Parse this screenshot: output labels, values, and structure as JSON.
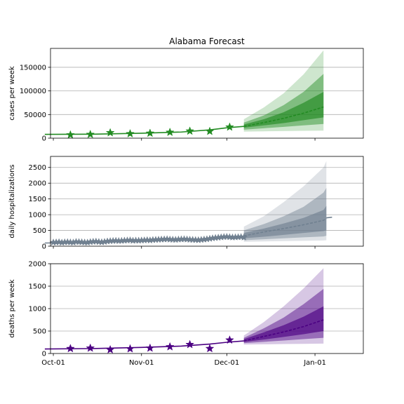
{
  "title": "Alabama Forecast",
  "chart_data": [
    {
      "type": "line",
      "name_key": "cases",
      "ylabel": "cases per week",
      "ylim": [
        0,
        190000
      ],
      "yticks": [
        0,
        50000,
        100000,
        150000
      ],
      "ytick_labels": [
        "0",
        "50000",
        "100000",
        "150000"
      ],
      "grid": true,
      "color": "#228B22",
      "observed_marker": "star",
      "observed": {
        "x": [
          "2020-10-07",
          "2020-10-14",
          "2020-10-21",
          "2020-10-28",
          "2020-11-04",
          "2020-11-11",
          "2020-11-18",
          "2020-11-25",
          "2020-12-02"
        ],
        "y": [
          7000,
          8000,
          11500,
          9500,
          10500,
          12500,
          15000,
          14500,
          23500
        ]
      },
      "fit": {
        "x": [
          "2020-09-28",
          "2020-10-15",
          "2020-11-01",
          "2020-11-15",
          "2020-11-25",
          "2020-12-01",
          "2020-12-07"
        ],
        "y": [
          8000,
          8500,
          10500,
          13000,
          17500,
          22000,
          25000
        ]
      },
      "forecast": {
        "x": [
          "2020-12-07",
          "2020-12-14",
          "2020-12-21",
          "2020-12-28",
          "2021-01-04"
        ],
        "median": [
          25000,
          33000,
          42000,
          53000,
          66000
        ],
        "bands": [
          {
            "level": "outer",
            "low": [
              14000,
              14500,
              15000,
              15500,
              16000
            ],
            "high": [
              40000,
              65000,
              95000,
              135000,
              186000
            ]
          },
          {
            "level": "middle",
            "low": [
              18000,
              21000,
              24000,
              27000,
              30000
            ],
            "high": [
              33000,
              48000,
              70000,
              98000,
              136000
            ]
          },
          {
            "level": "inner",
            "low": [
              22000,
              27000,
              32000,
              38000,
              44000
            ],
            "high": [
              29000,
              40000,
              55000,
              75000,
              98000
            ]
          }
        ]
      }
    },
    {
      "type": "line",
      "name_key": "hospitalizations",
      "ylabel": "daily hospitalizations",
      "ylim": [
        0,
        2850
      ],
      "yticks": [
        0,
        500,
        1000,
        1500,
        2000,
        2500
      ],
      "ytick_labels": [
        "0",
        "500",
        "1000",
        "1500",
        "2000",
        "2500"
      ],
      "grid": true,
      "color": "#708090",
      "observed_marker": "star",
      "observed": {
        "x_start": "2020-10-01",
        "x_end": "2020-12-07",
        "y": [
          120,
          125,
          130,
          115,
          128,
          132,
          125,
          118,
          140,
          135,
          128,
          122,
          118,
          135,
          145,
          150,
          138,
          128,
          140,
          155,
          165,
          170,
          175,
          168,
          172,
          180,
          185,
          190,
          175,
          182,
          180,
          185,
          190,
          195,
          188,
          200,
          205,
          210,
          215,
          220,
          225,
          215,
          210,
          205,
          215,
          220,
          225,
          218,
          210,
          205,
          200,
          195,
          205,
          215,
          225,
          240,
          255,
          265,
          275,
          285,
          295,
          300,
          290,
          280,
          285,
          290,
          295,
          280
        ]
      },
      "fit": {
        "x": [
          "2020-09-28",
          "2020-10-15",
          "2020-11-01",
          "2020-11-15",
          "2020-12-01",
          "2020-12-07"
        ],
        "y": [
          100,
          130,
          170,
          200,
          270,
          310
        ]
      },
      "forecast": {
        "x": [
          "2020-12-07",
          "2020-12-14",
          "2020-12-21",
          "2020-12-28",
          "2021-01-04",
          "2021-01-05"
        ],
        "median": [
          330,
          450,
          560,
          680,
          820,
          880
        ],
        "tail": {
          "x": [
            "2021-01-05",
            "2021-01-07"
          ],
          "y": [
            900,
            920
          ]
        },
        "bands": [
          {
            "level": "outer",
            "low": [
              140,
              150,
              160,
              170,
              180,
              190
            ],
            "high": [
              620,
              950,
              1400,
              1900,
              2500,
              2700
            ]
          },
          {
            "level": "middle",
            "low": [
              190,
              220,
              250,
              280,
              310,
              330
            ],
            "high": [
              500,
              700,
              950,
              1250,
              1700,
              1850
            ]
          },
          {
            "level": "inner",
            "low": [
              250,
              300,
              360,
              420,
              480,
              510
            ],
            "high": [
              420,
              560,
              720,
              900,
              1150,
              1280
            ]
          }
        ]
      }
    },
    {
      "type": "line",
      "name_key": "deaths",
      "ylabel": "deaths per week",
      "xlabel": "",
      "ylim": [
        0,
        2000
      ],
      "yticks": [
        0,
        500,
        1000,
        1500,
        2000
      ],
      "ytick_labels": [
        "0",
        "500",
        "1000",
        "1500",
        "2000"
      ],
      "grid": true,
      "color": "#4B0082",
      "observed_marker": "star",
      "observed": {
        "x": [
          "2020-10-07",
          "2020-10-14",
          "2020-10-21",
          "2020-10-28",
          "2020-11-04",
          "2020-11-11",
          "2020-11-18",
          "2020-11-25",
          "2020-12-02"
        ],
        "y": [
          110,
          120,
          85,
          105,
          120,
          150,
          200,
          110,
          300
        ]
      },
      "fit": {
        "x": [
          "2020-09-28",
          "2020-10-15",
          "2020-11-01",
          "2020-11-15",
          "2020-11-25",
          "2020-12-01",
          "2020-12-07"
        ],
        "y": [
          100,
          110,
          135,
          165,
          210,
          250,
          280
        ]
      },
      "forecast": {
        "x": [
          "2020-12-07",
          "2020-12-14",
          "2020-12-21",
          "2020-12-28",
          "2021-01-04"
        ],
        "median": [
          280,
          380,
          480,
          600,
          750
        ],
        "bands": [
          {
            "level": "outer",
            "low": [
              200,
              205,
              210,
              215,
              220
            ],
            "high": [
              400,
              700,
              1050,
              1450,
              1900
            ]
          },
          {
            "level": "middle",
            "low": [
              230,
              260,
              290,
              320,
              350
            ],
            "high": [
              350,
              560,
              800,
              1100,
              1440
            ]
          },
          {
            "level": "inner",
            "low": [
              255,
              310,
              370,
              430,
              500
            ],
            "high": [
              320,
              470,
              630,
              820,
              1050
            ]
          }
        ]
      }
    }
  ],
  "x_axis": {
    "min": "2020-09-30",
    "max": "2021-01-18",
    "ticks": [
      "2020-10-01",
      "2020-11-01",
      "2020-12-01",
      "2021-01-01"
    ],
    "tick_labels": [
      "Oct-01",
      "Nov-01",
      "Dec-01",
      "Jan-01"
    ]
  }
}
